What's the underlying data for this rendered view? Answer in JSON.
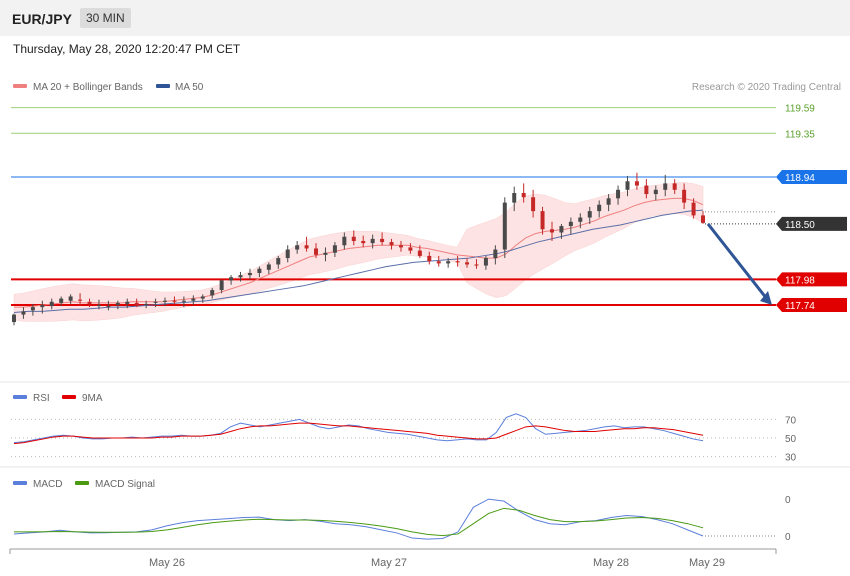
{
  "header": {
    "symbol": "EUR/JPY",
    "timeframe": "30 MIN",
    "datetime": "Thursday, May 28, 2020 12:20:47 PM CET"
  },
  "legend": {
    "ma20_label": "MA 20 + Bollinger Bands",
    "ma50_label": "MA 50",
    "copyright": "Research © 2020 Trading Central"
  },
  "colors": {
    "bollinger": "#fde3e3",
    "ma20": "#f08080",
    "ma50": "#5a6fa8",
    "candle_up": "#4a4a4a",
    "candle_down": "#c62828",
    "support": "#e00000",
    "resistance_blue": "#1a73e8",
    "target_green": "#5aa02c",
    "rsi": "#5b7fdb",
    "rsi_ma": "#e00000",
    "macd": "#5b7fdb",
    "macd_signal": "#4a9a14",
    "arrow": "#2f5597"
  },
  "levels": [
    {
      "value": "119.59",
      "kind": "green"
    },
    {
      "value": "119.35",
      "kind": "green"
    },
    {
      "value": "118.94",
      "kind": "blue"
    },
    {
      "value": "118.50",
      "kind": "last"
    },
    {
      "value": "117.98",
      "kind": "red"
    },
    {
      "value": "117.74",
      "kind": "red"
    }
  ],
  "indicators": {
    "rsi_label": "RSI",
    "rsi_ma_label": "9MA",
    "rsi_ticks": [
      "70",
      "50",
      "30"
    ],
    "macd_label": "MACD",
    "macd_signal_label": "MACD Signal",
    "macd_ticks": [
      "0",
      "0"
    ]
  },
  "x_axis": {
    "labels": [
      "May 26",
      "May 27",
      "May 28",
      "May 29"
    ]
  },
  "chart_data": {
    "type": "candlestick",
    "price_range": [
      117.6,
      119.65
    ],
    "ohlc": [
      [
        117.58,
        117.66,
        117.55,
        117.65
      ],
      [
        117.65,
        117.72,
        117.61,
        117.68
      ],
      [
        117.69,
        117.75,
        117.64,
        117.72
      ],
      [
        117.72,
        117.78,
        117.66,
        117.74
      ],
      [
        117.73,
        117.8,
        117.7,
        117.77
      ],
      [
        117.76,
        117.82,
        117.73,
        117.8
      ],
      [
        117.78,
        117.84,
        117.75,
        117.82
      ],
      [
        117.79,
        117.85,
        117.73,
        117.78
      ],
      [
        117.77,
        117.8,
        117.72,
        117.75
      ],
      [
        117.74,
        117.79,
        117.7,
        117.74
      ],
      [
        117.73,
        117.78,
        117.69,
        117.73
      ],
      [
        117.74,
        117.78,
        117.7,
        117.76
      ],
      [
        117.75,
        117.8,
        117.71,
        117.77
      ],
      [
        117.76,
        117.8,
        117.72,
        117.74
      ],
      [
        117.74,
        117.78,
        117.71,
        117.75
      ],
      [
        117.76,
        117.8,
        117.72,
        117.77
      ],
      [
        117.77,
        117.81,
        117.73,
        117.78
      ],
      [
        117.78,
        117.82,
        117.74,
        117.77
      ],
      [
        117.77,
        117.82,
        117.72,
        117.78
      ],
      [
        117.78,
        117.83,
        117.74,
        117.8
      ],
      [
        117.8,
        117.84,
        117.76,
        117.82
      ],
      [
        117.83,
        117.9,
        117.8,
        117.88
      ],
      [
        117.88,
        117.98,
        117.85,
        117.97
      ],
      [
        117.97,
        118.02,
        117.93,
        118.0
      ],
      [
        118.0,
        118.05,
        117.96,
        118.02
      ],
      [
        118.02,
        118.08,
        117.98,
        118.04
      ],
      [
        118.04,
        118.1,
        118.0,
        118.08
      ],
      [
        118.07,
        118.14,
        118.03,
        118.12
      ],
      [
        118.12,
        118.2,
        118.08,
        118.18
      ],
      [
        118.18,
        118.3,
        118.14,
        118.26
      ],
      [
        118.26,
        118.34,
        118.22,
        118.3
      ],
      [
        118.3,
        118.38,
        118.24,
        118.27
      ],
      [
        118.27,
        118.32,
        118.18,
        118.21
      ],
      [
        118.21,
        118.28,
        118.15,
        118.23
      ],
      [
        118.23,
        118.33,
        118.19,
        118.3
      ],
      [
        118.3,
        118.42,
        118.26,
        118.38
      ],
      [
        118.38,
        118.44,
        118.3,
        118.34
      ],
      [
        118.34,
        118.39,
        118.28,
        118.32
      ],
      [
        118.32,
        118.4,
        118.27,
        118.36
      ],
      [
        118.36,
        118.42,
        118.3,
        118.33
      ],
      [
        118.33,
        118.36,
        118.26,
        118.3
      ],
      [
        118.3,
        118.34,
        118.24,
        118.28
      ],
      [
        118.28,
        118.32,
        118.22,
        118.25
      ],
      [
        118.25,
        118.3,
        118.18,
        118.2
      ],
      [
        118.2,
        118.24,
        118.12,
        118.15
      ],
      [
        118.15,
        118.2,
        118.1,
        118.13
      ],
      [
        118.13,
        118.18,
        118.09,
        118.15
      ],
      [
        118.15,
        118.2,
        118.1,
        118.14
      ],
      [
        118.14,
        118.18,
        118.09,
        118.12
      ],
      [
        118.12,
        118.17,
        118.08,
        118.11
      ],
      [
        118.11,
        118.2,
        118.07,
        118.18
      ],
      [
        118.18,
        118.3,
        118.12,
        118.26
      ],
      [
        118.26,
        118.75,
        118.18,
        118.7
      ],
      [
        118.7,
        118.85,
        118.62,
        118.79
      ],
      [
        118.79,
        118.88,
        118.7,
        118.75
      ],
      [
        118.75,
        118.82,
        118.56,
        118.62
      ],
      [
        118.62,
        118.66,
        118.4,
        118.45
      ],
      [
        118.45,
        118.52,
        118.34,
        118.42
      ],
      [
        118.42,
        118.5,
        118.36,
        118.48
      ],
      [
        118.48,
        118.56,
        118.4,
        118.52
      ],
      [
        118.52,
        118.6,
        118.46,
        118.56
      ],
      [
        118.56,
        118.66,
        118.5,
        118.62
      ],
      [
        118.62,
        118.72,
        118.56,
        118.68
      ],
      [
        118.68,
        118.78,
        118.62,
        118.74
      ],
      [
        118.74,
        118.86,
        118.68,
        118.82
      ],
      [
        118.82,
        118.95,
        118.76,
        118.9
      ],
      [
        118.9,
        118.98,
        118.82,
        118.86
      ],
      [
        118.86,
        118.92,
        118.74,
        118.78
      ],
      [
        118.78,
        118.86,
        118.72,
        118.82
      ],
      [
        118.82,
        118.96,
        118.76,
        118.88
      ],
      [
        118.88,
        118.92,
        118.78,
        118.82
      ],
      [
        118.82,
        118.88,
        118.64,
        118.7
      ],
      [
        118.7,
        118.74,
        118.55,
        118.58
      ],
      [
        118.58,
        118.62,
        118.5,
        118.51
      ]
    ],
    "ma20": [
      117.72,
      117.72,
      117.73,
      117.74,
      117.75,
      117.76,
      117.77,
      117.76,
      117.76,
      117.76,
      117.76,
      117.76,
      117.77,
      117.77,
      117.77,
      117.77,
      117.78,
      117.79,
      117.8,
      117.81,
      117.83,
      117.86,
      117.89,
      117.92,
      117.95,
      117.99,
      118.03,
      118.07,
      118.11,
      118.15,
      118.19,
      118.21,
      118.23,
      118.25,
      118.27,
      118.28,
      118.29,
      118.3,
      118.3,
      118.3,
      118.3,
      118.28,
      118.27,
      118.25,
      118.23,
      118.21,
      118.2,
      118.19,
      118.18,
      118.18,
      118.22,
      118.3,
      118.37,
      118.41,
      118.43,
      118.44,
      118.45,
      118.47,
      118.5,
      118.53,
      118.57,
      118.6,
      118.63,
      118.67,
      118.7,
      118.72,
      118.73,
      118.74,
      118.74,
      118.72,
      118.68
    ],
    "ma50": [
      117.67,
      117.68,
      117.68,
      117.69,
      117.7,
      117.7,
      117.71,
      117.72,
      117.72,
      117.73,
      117.74,
      117.75,
      117.76,
      117.77,
      117.78,
      117.8,
      117.82,
      117.84,
      117.86,
      117.88,
      117.9,
      117.92,
      117.95,
      117.98,
      118.01,
      118.04,
      118.07,
      118.1,
      118.12,
      118.14,
      118.15,
      118.16,
      118.17,
      118.18,
      118.2,
      118.22,
      118.25,
      118.29,
      118.33,
      118.36,
      118.39,
      118.42,
      118.45,
      118.47,
      118.49,
      118.52,
      118.55,
      118.58,
      118.6,
      118.62,
      118.63
    ],
    "bb_upper_peak": 118.9,
    "rsi_ticks": [
      70,
      50,
      30
    ],
    "rsi": [
      45,
      46,
      48,
      50,
      52,
      53,
      52,
      50,
      49,
      49,
      50,
      50,
      51,
      50,
      51,
      52,
      52,
      53,
      52,
      52,
      53,
      55,
      62,
      66,
      64,
      62,
      64,
      66,
      68,
      70,
      66,
      62,
      60,
      62,
      64,
      63,
      60,
      58,
      56,
      55,
      54,
      52,
      50,
      48,
      47,
      48,
      49,
      48,
      48,
      56,
      72,
      76,
      72,
      60,
      54,
      55,
      56,
      57,
      58,
      60,
      62,
      63,
      61,
      62,
      62,
      60,
      58,
      55,
      52,
      49,
      47
    ],
    "rsi_ma": [
      44,
      45,
      47,
      49,
      51,
      52,
      52,
      51,
      50,
      50,
      50,
      50,
      50,
      50,
      50,
      51,
      51,
      52,
      52,
      52,
      53,
      54,
      57,
      60,
      62,
      63,
      63,
      64,
      65,
      66,
      66,
      65,
      64,
      63,
      63,
      62,
      61,
      60,
      59,
      58,
      57,
      56,
      55,
      53,
      52,
      51,
      50,
      49,
      49,
      50,
      54,
      58,
      62,
      63,
      62,
      60,
      58,
      57,
      57,
      57,
      58,
      59,
      60,
      60,
      61,
      61,
      60,
      59,
      57,
      55,
      53
    ],
    "macd": [
      0.01,
      0.015,
      0.02,
      0.028,
      0.02,
      0.015,
      0.016,
      0.018,
      0.02,
      0.03,
      0.05,
      0.065,
      0.075,
      0.08,
      0.085,
      0.09,
      0.092,
      0.08,
      0.075,
      0.08,
      0.072,
      0.06,
      0.055,
      0.045,
      0.03,
      0.015,
      -0.01,
      -0.015,
      -0.012,
      0.02,
      0.14,
      0.18,
      0.17,
      0.12,
      0.08,
      0.06,
      0.055,
      0.07,
      0.075,
      0.09,
      0.1,
      0.095,
      0.08,
      0.06,
      0.03,
      0.0
    ],
    "macd_signal": [
      0.02,
      0.02,
      0.021,
      0.022,
      0.021,
      0.019,
      0.018,
      0.018,
      0.019,
      0.022,
      0.03,
      0.042,
      0.055,
      0.065,
      0.072,
      0.078,
      0.082,
      0.08,
      0.078,
      0.078,
      0.076,
      0.072,
      0.066,
      0.058,
      0.048,
      0.036,
      0.02,
      0.008,
      0.002,
      0.01,
      0.06,
      0.11,
      0.135,
      0.125,
      0.1,
      0.08,
      0.07,
      0.07,
      0.073,
      0.08,
      0.088,
      0.09,
      0.086,
      0.075,
      0.06,
      0.04
    ],
    "forecast_arrow": {
      "from": 118.5,
      "to": 117.74
    }
  }
}
